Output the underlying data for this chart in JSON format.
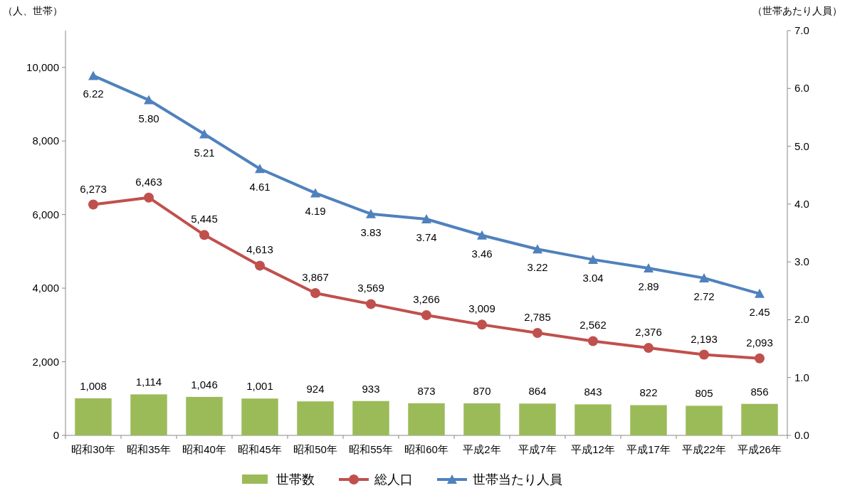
{
  "chart_data": {
    "type": "bar",
    "categories": [
      "昭和30年",
      "昭和35年",
      "昭和40年",
      "昭和45年",
      "昭和50年",
      "昭和55年",
      "昭和60年",
      "平成2年",
      "平成7年",
      "平成12年",
      "平成17年",
      "平成22年",
      "平成26年"
    ],
    "ylabel": "（人、世帯）",
    "y2label": "（世帯あたり人員）",
    "ylim": [
      0,
      11000
    ],
    "yticks": [
      0,
      {
        "value": 2000,
        "label": "2,000"
      },
      {
        "value": 4000,
        "label": "4,000"
      },
      {
        "value": 6000,
        "label": "6,000"
      },
      {
        "value": 8000,
        "label": "8,000"
      },
      {
        "value": 10000,
        "label": "10,000"
      }
    ],
    "y2lim": [
      0,
      7
    ],
    "y2ticks": [
      {
        "value": 0,
        "label": "0.0"
      },
      {
        "value": 1,
        "label": "1.0"
      },
      {
        "value": 2,
        "label": "2.0"
      },
      {
        "value": 3,
        "label": "3.0"
      },
      {
        "value": 4,
        "label": "4.0"
      },
      {
        "value": 5,
        "label": "5.0"
      },
      {
        "value": 6,
        "label": "6.0"
      },
      {
        "value": 7,
        "label": "7.0"
      }
    ],
    "grid": false,
    "legend": "bottom",
    "series": [
      {
        "name": "世帯数",
        "color": "#9bbb59",
        "values": [
          1008,
          1114,
          1046,
          1001,
          924,
          933,
          873,
          870,
          864,
          843,
          822,
          805,
          856
        ],
        "value_labels": [
          "1,008",
          "1,114",
          "1,046",
          "1,001",
          "924",
          "933",
          "873",
          "870",
          "864",
          "843",
          "822",
          "805",
          "856"
        ]
      },
      {
        "name": "総人口",
        "type": "line",
        "marker": "circle",
        "color": "#c0504d",
        "values": [
          6273,
          6463,
          5445,
          4613,
          3867,
          3569,
          3266,
          3009,
          2785,
          2562,
          2376,
          2193,
          2093
        ],
        "value_labels": [
          "6,273",
          "6,463",
          "5,445",
          "4,613",
          "3,867",
          "3,569",
          "3,266",
          "3,009",
          "2,785",
          "2,562",
          "2,376",
          "2,193",
          "2,093"
        ]
      },
      {
        "name": "世帯当たり人員",
        "type": "line",
        "marker": "triangle",
        "axis": "y2",
        "color": "#4f81bd",
        "values": [
          6.22,
          5.8,
          5.21,
          4.61,
          4.19,
          3.83,
          3.74,
          3.46,
          3.22,
          3.04,
          2.89,
          2.72,
          2.45
        ],
        "value_labels": [
          "6.22",
          "5.80",
          "5.21",
          "4.61",
          "4.19",
          "3.83",
          "3.74",
          "3.46",
          "3.22",
          "3.04",
          "2.89",
          "2.72",
          "2.45"
        ]
      }
    ]
  }
}
